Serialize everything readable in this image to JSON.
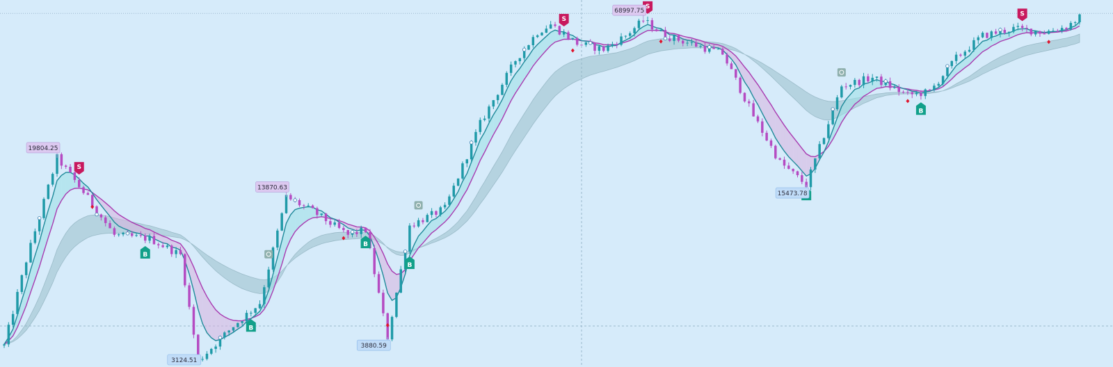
{
  "chart_data": {
    "type": "candlestick",
    "x_count": 245,
    "price_range": [
      3000,
      75000
    ],
    "colors": {
      "background": "#d6ebfa",
      "bull_candle": "#1f9aa8",
      "bear_candle": "#b54bc2",
      "fast_line": "#1f8a9a",
      "slow_line": "#a83ab0",
      "bull_cloud": "#9de0e6",
      "bear_cloud": "#d9b2de",
      "band": "#8fb6c2",
      "buy_marker": "#12a08a",
      "sell_marker": "#c8195e",
      "high_label_bg": "#dcc9f0",
      "low_label_bg": "#c0dcf8",
      "neutral_marker": "#8fb0ad"
    },
    "anchors": [
      [
        0,
        3600
      ],
      [
        5,
        7800
      ],
      [
        12,
        19804.25
      ],
      [
        18,
        14500
      ],
      [
        25,
        9800
      ],
      [
        33,
        9500
      ],
      [
        40,
        8200
      ],
      [
        44,
        3124.51
      ],
      [
        52,
        4300
      ],
      [
        58,
        5300
      ],
      [
        64,
        13870.63
      ],
      [
        70,
        12200
      ],
      [
        78,
        9800
      ],
      [
        82,
        10300
      ],
      [
        87,
        3880.59
      ],
      [
        92,
        10700
      ],
      [
        100,
        12500
      ],
      [
        108,
        27000
      ],
      [
        116,
        48000
      ],
      [
        121,
        62000
      ],
      [
        124,
        66500
      ],
      [
        130,
        56000
      ],
      [
        136,
        53000
      ],
      [
        141,
        60000
      ],
      [
        145,
        68997.75
      ],
      [
        150,
        60000
      ],
      [
        157,
        55000
      ],
      [
        163,
        51000
      ],
      [
        170,
        29000
      ],
      [
        176,
        19000
      ],
      [
        182,
        15473.78
      ],
      [
        190,
        38000
      ],
      [
        197,
        41000
      ],
      [
        205,
        35000
      ],
      [
        210,
        36000
      ],
      [
        216,
        49000
      ],
      [
        222,
        60000
      ],
      [
        229,
        64000
      ],
      [
        236,
        62000
      ],
      [
        241,
        65000
      ],
      [
        245,
        73000
      ]
    ],
    "annotations": [
      {
        "type": "high",
        "index": 12,
        "price": 19804.25,
        "text": "19804.25"
      },
      {
        "type": "high",
        "index": 64,
        "price": 13870.63,
        "text": "13870.63"
      },
      {
        "type": "high",
        "index": 145,
        "price": 68997.75,
        "text": "68997.75"
      },
      {
        "type": "low",
        "index": 44,
        "price": 3124.51,
        "text": "3124.51"
      },
      {
        "type": "low",
        "index": 87,
        "price": 3880.59,
        "text": "3880.59"
      },
      {
        "type": "low",
        "index": 182,
        "price": 15473.78,
        "text": "15473.78"
      }
    ],
    "signals": [
      {
        "type": "sell",
        "index": 17,
        "text": "S"
      },
      {
        "type": "sell",
        "index": 127,
        "text": "S"
      },
      {
        "type": "sell",
        "index": 146,
        "text": "S"
      },
      {
        "type": "sell",
        "index": 231,
        "text": "S"
      },
      {
        "type": "buy",
        "index": 32,
        "text": "B"
      },
      {
        "type": "buy",
        "index": 56,
        "text": "B"
      },
      {
        "type": "buy",
        "index": 82,
        "text": "B"
      },
      {
        "type": "buy",
        "index": 92,
        "text": "B"
      },
      {
        "type": "buy",
        "index": 182,
        "text": "B"
      },
      {
        "type": "buy",
        "index": 208,
        "text": "B"
      }
    ],
    "neutral_markers": [
      60,
      94,
      190
    ],
    "diamonds": [
      20,
      77,
      87,
      129,
      149,
      205,
      237
    ],
    "crosshair_price": 4300,
    "crosshair_index": 131,
    "top_dotted_price": 73500
  }
}
